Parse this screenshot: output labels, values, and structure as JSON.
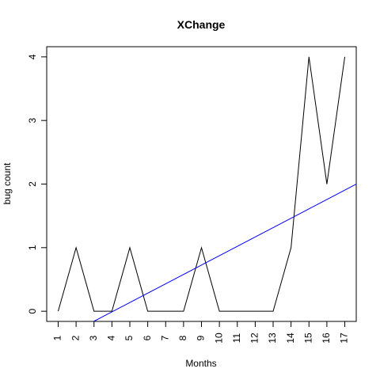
{
  "chart_data": {
    "type": "line",
    "title": "XChange",
    "xlabel": "Months",
    "ylabel": "bug count",
    "x": [
      1,
      2,
      3,
      4,
      5,
      6,
      7,
      8,
      9,
      10,
      11,
      12,
      13,
      14,
      15,
      16,
      17
    ],
    "x_tick_labels": [
      "1",
      "2",
      "3",
      "4",
      "5",
      "6",
      "7",
      "8",
      "9",
      "10",
      "11",
      "12",
      "13",
      "14",
      "15",
      "16",
      "17"
    ],
    "y_ticks": [
      0,
      1,
      2,
      3,
      4
    ],
    "y_tick_labels": [
      "0",
      "1",
      "2",
      "3",
      "4"
    ],
    "xlim": [
      0.36,
      17.64
    ],
    "ylim": [
      -0.16,
      4.16
    ],
    "grid": false,
    "series": [
      {
        "values": [
          0,
          1,
          0,
          0,
          1,
          0,
          0,
          0,
          1,
          0,
          0,
          0,
          0,
          1,
          4,
          2,
          4
        ],
        "color": "#000000"
      }
    ],
    "trend_line": {
      "color": "#0000ff",
      "slope": 0.1473,
      "intercept": -0.5996
    }
  }
}
